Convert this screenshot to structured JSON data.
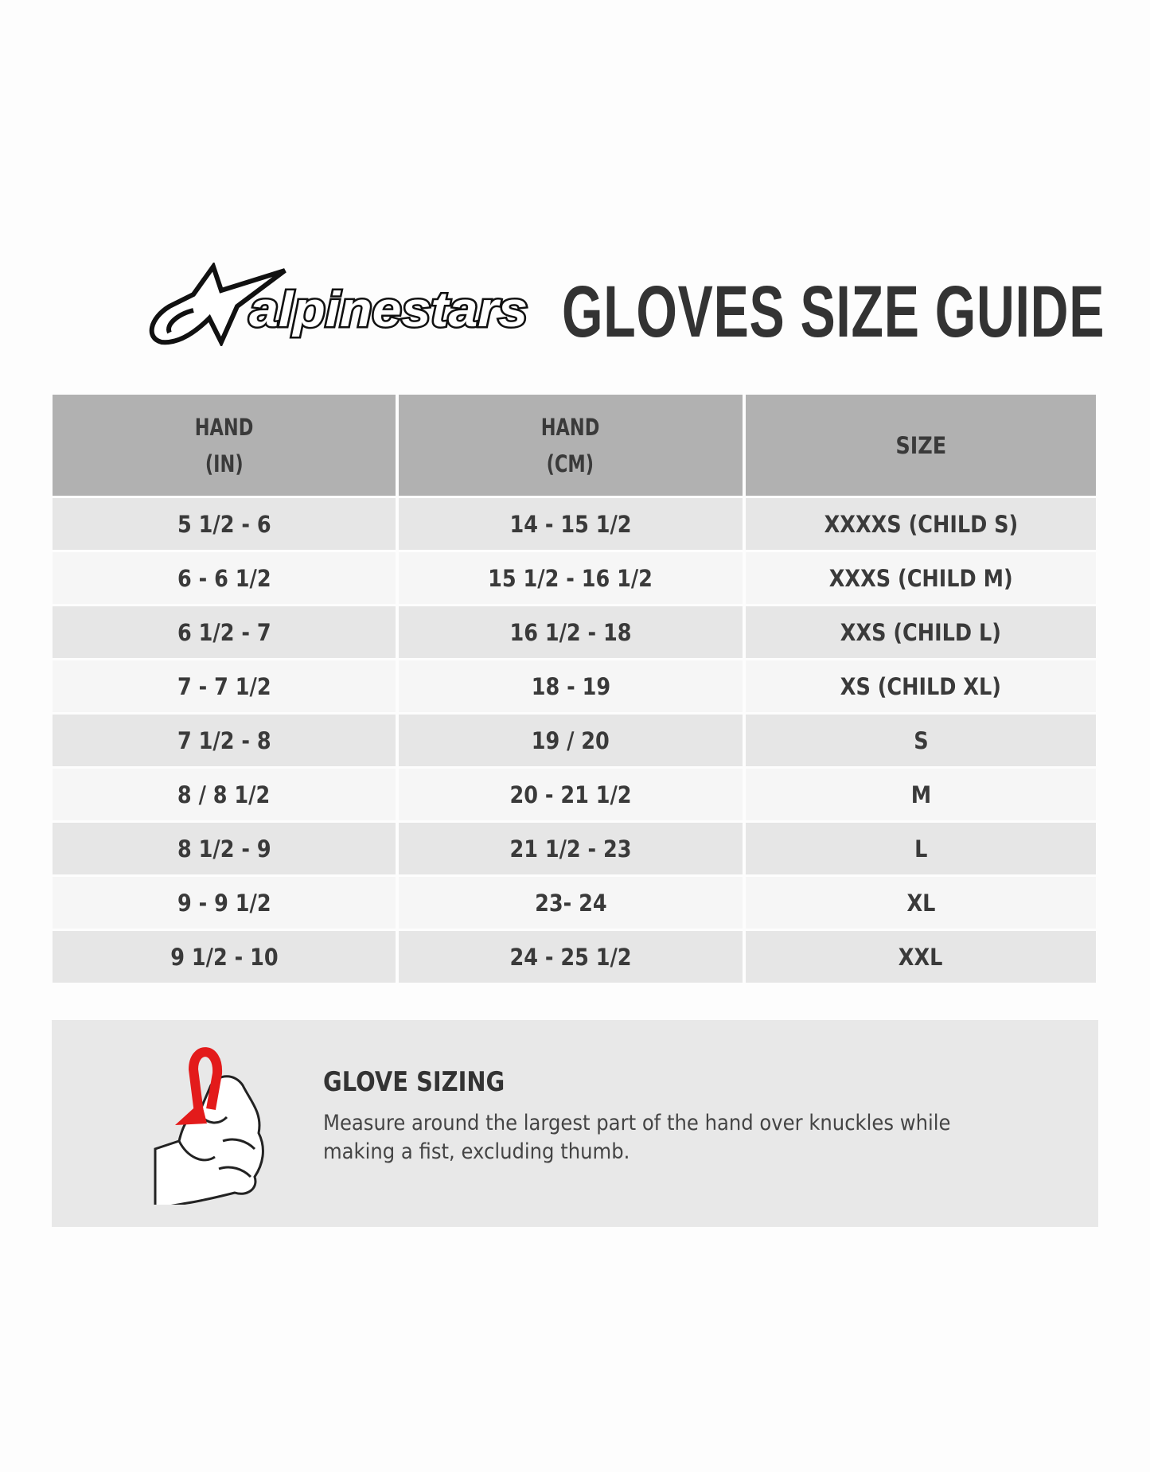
{
  "brand": {
    "name": "alpinestars"
  },
  "title": "GLOVES SIZE GUIDE",
  "table": {
    "headers": [
      [
        "HAND",
        "(IN)"
      ],
      [
        "HAND",
        "(CM)"
      ],
      [
        "SIZE"
      ]
    ],
    "rows": [
      [
        "5 1/2 - 6",
        "14 - 15 1/2",
        "XXXXS (CHILD S)"
      ],
      [
        "6 - 6 1/2",
        "15 1/2 - 16 1/2",
        "XXXS (CHILD M)"
      ],
      [
        "6 1/2 - 7",
        "16 1/2 - 18",
        "XXS (CHILD L)"
      ],
      [
        "7 - 7 1/2",
        "18 - 19",
        "XS (CHILD XL)"
      ],
      [
        "7 1/2 - 8",
        "19 / 20",
        "S"
      ],
      [
        "8 / 8 1/2",
        "20 - 21 1/2",
        "M"
      ],
      [
        "8 1/2 - 9",
        "21 1/2 - 23",
        "L"
      ],
      [
        "9 - 9 1/2",
        "23- 24",
        "XL"
      ],
      [
        "9 1/2 - 10",
        "24 - 25 1/2",
        "XXL"
      ]
    ]
  },
  "sizing": {
    "heading": "GLOVE SIZING",
    "text": "Measure around the largest part of the hand over knuckles while making a fist, excluding thumb.",
    "icon": "fist-measure-icon",
    "arrow_color": "#e31b1b"
  }
}
